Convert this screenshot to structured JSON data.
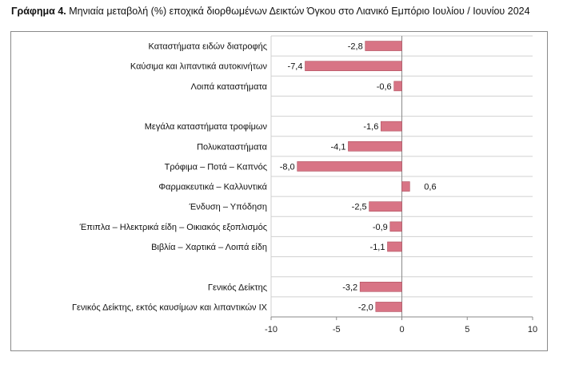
{
  "caption": {
    "lead": "Γράφημα 4.",
    "text": "Μηνιαία μεταβολή (%) εποχικά διορθωμένων Δεικτών Όγκου στο Λιανικό Εμπόριο Ιουλίου / Ιουνίου 2024"
  },
  "colors": {
    "bar": "#d87485",
    "bar_edge": "#b0505e",
    "grid": "#d0d0d0",
    "axis": "#8a8a8a"
  },
  "chart_data": {
    "type": "bar",
    "orientation": "horizontal",
    "xlim": [
      -10,
      10
    ],
    "xticks": [
      -10,
      -5,
      0,
      5,
      10
    ],
    "xticklabels": [
      "-10",
      "-5",
      "0",
      "5",
      "10"
    ],
    "grid": true,
    "categories": [
      "Καταστήματα ειδών διατροφής",
      "Καύσιμα και λιπαντικά αυτοκινήτων",
      "Λοιπά καταστήματα",
      "",
      "Μεγάλα καταστήματα τροφίμων",
      "Πολυκαταστήματα",
      "Τρόφιμα – Ποτά – Καπνός",
      "Φαρμακευτικά – Καλλυντικά",
      "Ένδυση – Υπόδηση",
      "Έπιπλα – Ηλεκτρικά είδη – Οικιακός εξοπλισμός",
      "Βιβλία – Χαρτικά – Λοιπά είδη",
      "",
      "Γενικός Δείκτης",
      "Γενικός Δείκτης, εκτός καυσίμων και λιπαντικών ΙΧ"
    ],
    "values": [
      -2.8,
      -7.4,
      -0.6,
      null,
      -1.6,
      -4.1,
      -8.0,
      0.6,
      -2.5,
      -0.9,
      -1.1,
      null,
      -3.2,
      -2.0
    ],
    "value_labels": [
      "-2,8",
      "-7,4",
      "-0,6",
      "",
      "-1,6",
      "-4,1",
      "-8,0",
      "0,6",
      "-2,5",
      "-0,9",
      "-1,1",
      "",
      "-3,2",
      "-2,0"
    ]
  }
}
